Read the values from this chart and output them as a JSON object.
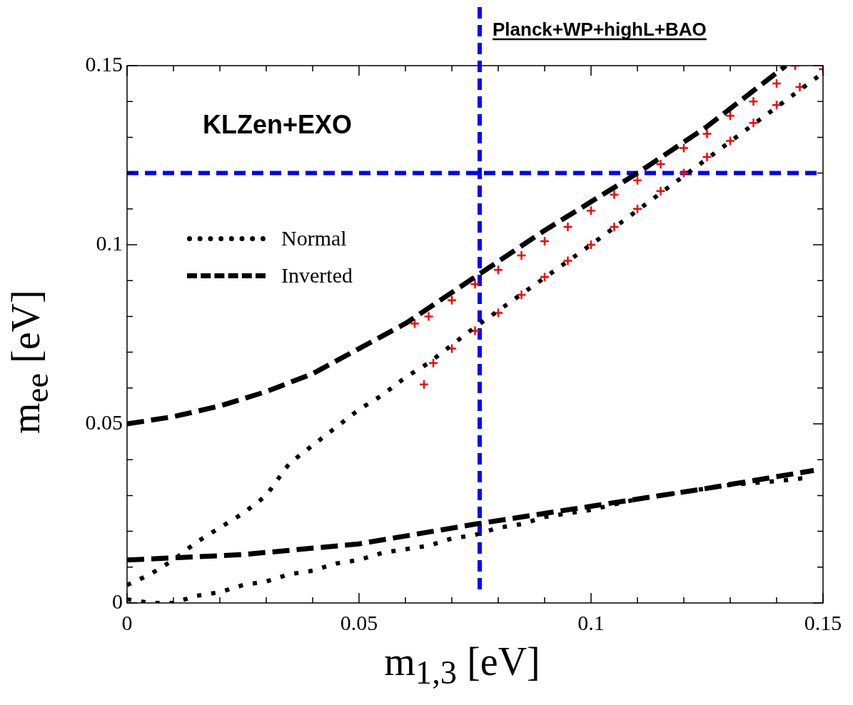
{
  "chart_data": {
    "type": "line",
    "xlabel": "m$_{1,3}$ [eV]",
    "ylabel": "m$_{ee}$ [eV]",
    "xlim": [
      0,
      0.15
    ],
    "ylim": [
      0,
      0.15
    ],
    "xticks": [
      0,
      {
        "value": 0.01,
        "label": null
      },
      {
        "value": 0.02,
        "label": null
      },
      {
        "value": 0.03,
        "label": null
      },
      {
        "value": 0.04,
        "label": null
      },
      0.05,
      {
        "value": 0.06,
        "label": null
      },
      {
        "value": 0.07,
        "label": null
      },
      {
        "value": 0.08,
        "label": null
      },
      {
        "value": 0.09,
        "label": null
      },
      0.1,
      {
        "value": 0.11,
        "label": null
      },
      {
        "value": 0.12,
        "label": null
      },
      {
        "value": 0.13,
        "label": null
      },
      {
        "value": 0.14,
        "label": null
      },
      0.15
    ],
    "yticks": [
      0,
      {
        "value": 0.01,
        "label": null
      },
      {
        "value": 0.02,
        "label": null
      },
      {
        "value": 0.03,
        "label": null
      },
      {
        "value": 0.04,
        "label": null
      },
      0.05,
      {
        "value": 0.06,
        "label": null
      },
      {
        "value": 0.07,
        "label": null
      },
      {
        "value": 0.08,
        "label": null
      },
      {
        "value": 0.09,
        "label": null
      },
      0.1,
      {
        "value": 0.11,
        "label": null
      },
      {
        "value": 0.12,
        "label": null
      },
      {
        "value": 0.13,
        "label": null
      },
      {
        "value": 0.14,
        "label": null
      },
      0.15
    ],
    "grid": false,
    "legend": "top left",
    "marker": "none",
    "ref_lines": [
      {
        "axis": "x",
        "value": 0.076,
        "label": "Planck+WP+highL+BAO",
        "color": "#0000ff",
        "line_style": "dashed"
      },
      {
        "axis": "y",
        "value": 0.12,
        "label": "KLZen+EXO",
        "color": "#0000ff",
        "line_style": "dashed"
      }
    ],
    "series": [
      {
        "name": "Normal",
        "color": "#000000",
        "line_style": "dotted",
        "x": [
          0,
          0.005,
          0.01,
          0.015,
          0.02,
          0.025,
          0.03,
          0.035,
          0.04,
          0.045,
          0.05,
          0.055,
          0.06,
          0.065,
          0.07,
          0.075,
          0.1,
          0.125,
          0.15
        ],
        "values": [
          0.005,
          0.008,
          0.012,
          0.017,
          0.021,
          0.025,
          0.03,
          0.039,
          0.044,
          0.049,
          0.054,
          0.058,
          0.063,
          0.067,
          0.072,
          0.077,
          0.1,
          0.124,
          0.148
        ]
      },
      {
        "color": "#000000",
        "line_style": "dotted",
        "x": [
          0,
          0.005,
          0.01,
          0.015,
          0.02,
          0.025,
          0.03,
          0.035,
          0.04,
          0.045,
          0.05,
          0.055,
          0.06,
          0.065,
          0.07,
          0.075,
          0.08,
          0.085,
          0.09,
          0.095,
          0.1,
          0.11,
          0.12,
          0.13,
          0.14,
          0.147
        ],
        "values": [
          0.001,
          0,
          0,
          0.002,
          0.003,
          0.005,
          0.006,
          0.008,
          0.009,
          0.011,
          0.012,
          0.014,
          0.015,
          0.016,
          0.018,
          0.019,
          0.021,
          0.022,
          0.024,
          0.025,
          0.026,
          0.029,
          0.031,
          0.033,
          0.034,
          0.035
        ]
      },
      {
        "name": "Inverted",
        "color": "#000000",
        "line_style": "dashed",
        "x": [
          0,
          0.01,
          0.02,
          0.03,
          0.04,
          0.05,
          0.06,
          0.075,
          0.09,
          0.1,
          0.11,
          0.125,
          0.142
        ],
        "values": [
          0.05,
          0.052,
          0.055,
          0.059,
          0.064,
          0.071,
          0.078,
          0.091,
          0.104,
          0.112,
          0.12,
          0.133,
          0.15
        ]
      },
      {
        "color": "#000000",
        "line_style": "dashed",
        "x": [
          0,
          0.025,
          0.05,
          0.075,
          0.1,
          0.125,
          0.148
        ],
        "values": [
          0.012,
          0.0135,
          0.0165,
          0.022,
          0.027,
          0.032,
          0.037
        ]
      },
      {
        "type": "scatter",
        "marker": "cross",
        "color": "#ff0000",
        "x": [
          0.062,
          0.065,
          0.07,
          0.075,
          0.08,
          0.085,
          0.09,
          0.095,
          0.1,
          0.105,
          0.11,
          0.115,
          0.12,
          0.125,
          0.13,
          0.135,
          0.14,
          0.144
        ],
        "values": [
          0.078,
          0.08,
          0.0845,
          0.089,
          0.093,
          0.097,
          0.101,
          0.105,
          0.1095,
          0.114,
          0.118,
          0.1225,
          0.127,
          0.131,
          0.136,
          0.14,
          0.145,
          0.15
        ]
      },
      {
        "type": "scatter",
        "marker": "cross",
        "color": "#ff0000",
        "x": [
          0.064,
          0.066,
          0.07,
          0.075,
          0.08,
          0.085,
          0.09,
          0.095,
          0.1,
          0.105,
          0.11,
          0.115,
          0.12,
          0.125,
          0.13,
          0.135,
          0.14,
          0.145,
          0.15
        ],
        "values": [
          0.061,
          0.067,
          0.071,
          0.076,
          0.081,
          0.086,
          0.091,
          0.0955,
          0.1,
          0.105,
          0.11,
          0.115,
          0.12,
          0.1245,
          0.129,
          0.134,
          0.139,
          0.144,
          0.149
        ]
      }
    ]
  }
}
